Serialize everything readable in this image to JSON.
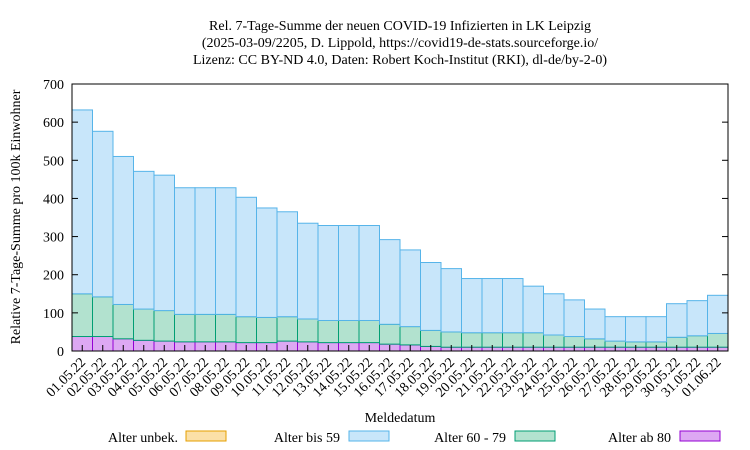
{
  "chart_data": {
    "type": "bar",
    "stacked": true,
    "title_lines": [
      "Rel. 7-Tage-Summe der neuen COVID-19 Infizierten in LK Leipzig",
      "(2025-03-09/2205, D. Lippold, https://covid19-de-stats.sourceforge.io/",
      "Lizenz: CC BY-ND 4.0, Daten: Robert Koch-Institut (RKI), dl-de/by-2-0)"
    ],
    "xlabel": "Meldedatum",
    "ylabel": "Relative 7-Tage-Summe pro 100k Einwohner",
    "ylim": [
      0,
      700
    ],
    "yticks": [
      0,
      100,
      200,
      300,
      400,
      500,
      600,
      700
    ],
    "grid": false,
    "legend_position": "bottom",
    "categories": [
      "01.05.22",
      "02.05.22",
      "03.05.22",
      "04.05.22",
      "05.05.22",
      "06.05.22",
      "07.05.22",
      "08.05.22",
      "09.05.22",
      "10.05.22",
      "11.05.22",
      "12.05.22",
      "13.05.22",
      "14.05.22",
      "15.05.22",
      "16.05.22",
      "17.05.22",
      "18.05.22",
      "19.05.22",
      "20.05.22",
      "21.05.22",
      "22.05.22",
      "23.05.22",
      "24.05.22",
      "25.05.22",
      "26.05.22",
      "27.05.22",
      "28.05.22",
      "29.05.22",
      "30.05.22",
      "31.05.22",
      "01.06.22"
    ],
    "series": [
      {
        "name": "Alter ab 80",
        "fill": "#dda8f3",
        "stroke": "#9400d3",
        "values": [
          38,
          38,
          32,
          28,
          26,
          24,
          24,
          24,
          22,
          22,
          26,
          24,
          22,
          22,
          22,
          18,
          16,
          12,
          10,
          10,
          10,
          10,
          10,
          10,
          10,
          10,
          10,
          10,
          10,
          10,
          10,
          10
        ]
      },
      {
        "name": "Alter 60 - 79",
        "fill": "#b2e2cf",
        "stroke": "#009e73",
        "values": [
          112,
          104,
          90,
          82,
          80,
          72,
          72,
          72,
          68,
          66,
          64,
          60,
          58,
          58,
          58,
          52,
          48,
          42,
          40,
          38,
          38,
          38,
          38,
          32,
          28,
          22,
          16,
          14,
          14,
          26,
          30,
          36
        ]
      },
      {
        "name": "Alter bis 59",
        "fill": "#c8e6fa",
        "stroke": "#56b4e9",
        "values": [
          482,
          434,
          388,
          361,
          355,
          332,
          332,
          332,
          313,
          287,
          275,
          251,
          249,
          249,
          249,
          222,
          201,
          178,
          166,
          142,
          142,
          142,
          122,
          108,
          96,
          78,
          64,
          66,
          66,
          88,
          92,
          100
        ]
      },
      {
        "name": "Alter unbek.",
        "fill": "#fbe0a8",
        "stroke": "#e69f00",
        "values": [
          0,
          0,
          0,
          0,
          0,
          0,
          0,
          0,
          0,
          0,
          0,
          0,
          0,
          0,
          0,
          0,
          0,
          0,
          0,
          0,
          0,
          0,
          0,
          0,
          0,
          0,
          0,
          0,
          0,
          0,
          0,
          0
        ]
      }
    ],
    "legend_order": [
      "Alter unbek.",
      "Alter bis 59",
      "Alter 60 - 79",
      "Alter ab 80"
    ]
  }
}
